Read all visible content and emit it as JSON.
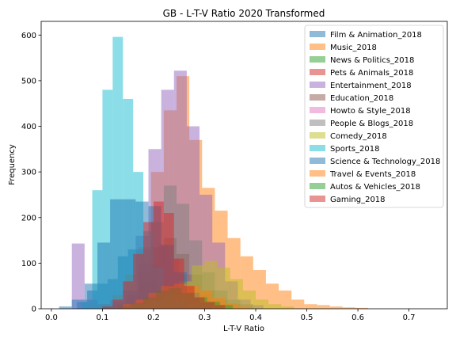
{
  "chart_data": {
    "type": "bar",
    "title": "GB - L-T-V Ratio 2020 Transformed",
    "xlabel": "L-T-V Ratio",
    "ylabel": "Frequency",
    "xlim": [
      -0.02,
      0.775
    ],
    "ylim": [
      0,
      630
    ],
    "xticks": [
      "0.0",
      "0.1",
      "0.2",
      "0.3",
      "0.4",
      "0.5",
      "0.6",
      "0.7"
    ],
    "yticks": [
      "0",
      "100",
      "200",
      "300",
      "400",
      "500",
      "600"
    ],
    "legend_position": "upper right",
    "grid": false,
    "series": [
      {
        "name": "Film & Animation_2018",
        "color": "#1f77b4",
        "bins": [
          [
            0.05,
            0.07,
            15
          ],
          [
            0.07,
            0.09,
            40
          ],
          [
            0.09,
            0.11,
            55
          ],
          [
            0.11,
            0.13,
            65
          ],
          [
            0.13,
            0.15,
            115
          ],
          [
            0.15,
            0.17,
            130
          ],
          [
            0.17,
            0.19,
            100
          ],
          [
            0.19,
            0.21,
            60
          ],
          [
            0.21,
            0.23,
            40
          ],
          [
            0.23,
            0.25,
            20
          ],
          [
            0.25,
            0.27,
            10
          ],
          [
            0.27,
            0.29,
            5
          ]
        ]
      },
      {
        "name": "Music_2018",
        "color": "#ff7f0e",
        "bins": [
          [
            0.07,
            0.095,
            5
          ],
          [
            0.095,
            0.12,
            10
          ],
          [
            0.12,
            0.145,
            30
          ],
          [
            0.145,
            0.17,
            75
          ],
          [
            0.17,
            0.195,
            135
          ],
          [
            0.195,
            0.22,
            300
          ],
          [
            0.22,
            0.245,
            435
          ],
          [
            0.245,
            0.27,
            510
          ],
          [
            0.27,
            0.295,
            370
          ],
          [
            0.295,
            0.32,
            265
          ],
          [
            0.32,
            0.345,
            215
          ],
          [
            0.345,
            0.37,
            155
          ],
          [
            0.37,
            0.395,
            115
          ],
          [
            0.395,
            0.42,
            85
          ],
          [
            0.42,
            0.445,
            55
          ],
          [
            0.445,
            0.47,
            40
          ],
          [
            0.47,
            0.495,
            20
          ],
          [
            0.495,
            0.52,
            10
          ],
          [
            0.52,
            0.545,
            8
          ],
          [
            0.545,
            0.57,
            5
          ],
          [
            0.57,
            0.595,
            3
          ],
          [
            0.595,
            0.62,
            2
          ]
        ]
      },
      {
        "name": "News & Politics_2018",
        "color": "#2ca02c",
        "bins": [
          [
            0.1,
            0.12,
            5
          ],
          [
            0.12,
            0.14,
            10
          ],
          [
            0.14,
            0.16,
            15
          ],
          [
            0.16,
            0.18,
            20
          ],
          [
            0.18,
            0.2,
            25
          ],
          [
            0.2,
            0.22,
            30
          ],
          [
            0.22,
            0.24,
            35
          ],
          [
            0.24,
            0.26,
            30
          ],
          [
            0.26,
            0.28,
            25
          ],
          [
            0.28,
            0.3,
            20
          ],
          [
            0.3,
            0.32,
            15
          ],
          [
            0.32,
            0.34,
            10
          ],
          [
            0.34,
            0.36,
            5
          ]
        ]
      },
      {
        "name": "Pets & Animals_2018",
        "color": "#d62728",
        "bins": [
          [
            0.13,
            0.15,
            10
          ],
          [
            0.15,
            0.17,
            30
          ],
          [
            0.17,
            0.19,
            60
          ],
          [
            0.19,
            0.21,
            100
          ],
          [
            0.21,
            0.23,
            140
          ],
          [
            0.23,
            0.25,
            110
          ],
          [
            0.25,
            0.27,
            75
          ],
          [
            0.27,
            0.29,
            50
          ],
          [
            0.29,
            0.31,
            30
          ],
          [
            0.31,
            0.33,
            15
          ],
          [
            0.33,
            0.35,
            8
          ]
        ]
      },
      {
        "name": "Entertainment_2018",
        "color": "#9467bd",
        "bins": [
          [
            0.04,
            0.065,
            143
          ],
          [
            0.065,
            0.09,
            20
          ],
          [
            0.09,
            0.115,
            10
          ],
          [
            0.115,
            0.14,
            20
          ],
          [
            0.14,
            0.165,
            40
          ],
          [
            0.165,
            0.19,
            160
          ],
          [
            0.19,
            0.215,
            350
          ],
          [
            0.215,
            0.24,
            480
          ],
          [
            0.24,
            0.265,
            522
          ],
          [
            0.265,
            0.29,
            400
          ],
          [
            0.29,
            0.315,
            250
          ],
          [
            0.315,
            0.34,
            145
          ],
          [
            0.34,
            0.365,
            60
          ],
          [
            0.365,
            0.39,
            20
          ],
          [
            0.39,
            0.415,
            8
          ]
        ]
      },
      {
        "name": "Education_2018",
        "color": "#8c564b",
        "bins": [
          [
            0.12,
            0.145,
            10
          ],
          [
            0.145,
            0.17,
            30
          ],
          [
            0.17,
            0.195,
            80
          ],
          [
            0.195,
            0.22,
            135
          ],
          [
            0.22,
            0.245,
            155
          ],
          [
            0.245,
            0.27,
            120
          ],
          [
            0.27,
            0.295,
            75
          ],
          [
            0.295,
            0.32,
            40
          ],
          [
            0.32,
            0.345,
            20
          ],
          [
            0.345,
            0.37,
            10
          ]
        ]
      },
      {
        "name": "Howto & Style_2018",
        "color": "#e377c2",
        "bins": [
          [
            0.15,
            0.17,
            5
          ],
          [
            0.17,
            0.19,
            10
          ],
          [
            0.19,
            0.21,
            15
          ],
          [
            0.21,
            0.23,
            20
          ],
          [
            0.23,
            0.25,
            25
          ],
          [
            0.25,
            0.27,
            20
          ],
          [
            0.27,
            0.29,
            15
          ],
          [
            0.29,
            0.31,
            10
          ],
          [
            0.31,
            0.33,
            5
          ]
        ]
      },
      {
        "name": "People & Blogs_2018",
        "color": "#7f7f7f",
        "bins": [
          [
            0.12,
            0.145,
            15
          ],
          [
            0.145,
            0.17,
            40
          ],
          [
            0.17,
            0.195,
            130
          ],
          [
            0.195,
            0.22,
            190
          ],
          [
            0.22,
            0.245,
            270
          ],
          [
            0.245,
            0.27,
            230
          ],
          [
            0.27,
            0.295,
            150
          ],
          [
            0.295,
            0.32,
            80
          ],
          [
            0.32,
            0.345,
            40
          ],
          [
            0.345,
            0.37,
            20
          ],
          [
            0.37,
            0.395,
            10
          ]
        ]
      },
      {
        "name": "Comedy_2018",
        "color": "#bcbd22",
        "bins": [
          [
            0.2,
            0.225,
            15
          ],
          [
            0.225,
            0.25,
            30
          ],
          [
            0.25,
            0.275,
            60
          ],
          [
            0.275,
            0.3,
            95
          ],
          [
            0.3,
            0.325,
            105
          ],
          [
            0.325,
            0.35,
            90
          ],
          [
            0.35,
            0.375,
            65
          ],
          [
            0.375,
            0.4,
            40
          ],
          [
            0.4,
            0.425,
            20
          ],
          [
            0.425,
            0.45,
            10
          ],
          [
            0.45,
            0.475,
            5
          ]
        ]
      },
      {
        "name": "Sports_2018",
        "color": "#17becf",
        "bins": [
          [
            0.06,
            0.08,
            15
          ],
          [
            0.08,
            0.1,
            260
          ],
          [
            0.1,
            0.12,
            480
          ],
          [
            0.12,
            0.14,
            596
          ],
          [
            0.14,
            0.16,
            460
          ],
          [
            0.16,
            0.18,
            300
          ],
          [
            0.18,
            0.2,
            170
          ],
          [
            0.2,
            0.22,
            90
          ],
          [
            0.22,
            0.24,
            40
          ],
          [
            0.24,
            0.26,
            15
          ]
        ]
      },
      {
        "name": "Science & Technology_2018",
        "color": "#1f77b4",
        "bins": [
          [
            0.015,
            0.04,
            5
          ],
          [
            0.04,
            0.065,
            20
          ],
          [
            0.065,
            0.09,
            55
          ],
          [
            0.09,
            0.115,
            145
          ],
          [
            0.115,
            0.14,
            240
          ],
          [
            0.14,
            0.165,
            240
          ],
          [
            0.165,
            0.19,
            235
          ],
          [
            0.19,
            0.215,
            225
          ],
          [
            0.215,
            0.24,
            140
          ],
          [
            0.24,
            0.265,
            80
          ],
          [
            0.265,
            0.29,
            35
          ],
          [
            0.29,
            0.315,
            12
          ]
        ]
      },
      {
        "name": "Travel & Events_2018",
        "color": "#ff7f0e",
        "bins": [
          [
            0.14,
            0.165,
            10
          ],
          [
            0.165,
            0.19,
            20
          ],
          [
            0.19,
            0.215,
            35
          ],
          [
            0.215,
            0.24,
            50
          ],
          [
            0.24,
            0.265,
            55
          ],
          [
            0.265,
            0.29,
            50
          ],
          [
            0.29,
            0.315,
            40
          ],
          [
            0.315,
            0.34,
            25
          ],
          [
            0.34,
            0.365,
            12
          ],
          [
            0.365,
            0.39,
            5
          ]
        ]
      },
      {
        "name": "Autos & Vehicles_2018",
        "color": "#2ca02c",
        "bins": [
          [
            0.13,
            0.155,
            5
          ],
          [
            0.155,
            0.18,
            12
          ],
          [
            0.18,
            0.205,
            25
          ],
          [
            0.205,
            0.23,
            40
          ],
          [
            0.23,
            0.255,
            45
          ],
          [
            0.255,
            0.28,
            35
          ],
          [
            0.28,
            0.305,
            25
          ],
          [
            0.305,
            0.33,
            15
          ],
          [
            0.33,
            0.355,
            8
          ]
        ]
      },
      {
        "name": "Gaming_2018",
        "color": "#d62728",
        "bins": [
          [
            0.1,
            0.12,
            5
          ],
          [
            0.12,
            0.14,
            20
          ],
          [
            0.14,
            0.16,
            60
          ],
          [
            0.16,
            0.18,
            120
          ],
          [
            0.18,
            0.2,
            190
          ],
          [
            0.2,
            0.22,
            235
          ],
          [
            0.22,
            0.24,
            210
          ],
          [
            0.24,
            0.26,
            110
          ],
          [
            0.26,
            0.28,
            50
          ],
          [
            0.28,
            0.3,
            25
          ],
          [
            0.3,
            0.32,
            15
          ],
          [
            0.32,
            0.34,
            8
          ]
        ]
      }
    ]
  }
}
